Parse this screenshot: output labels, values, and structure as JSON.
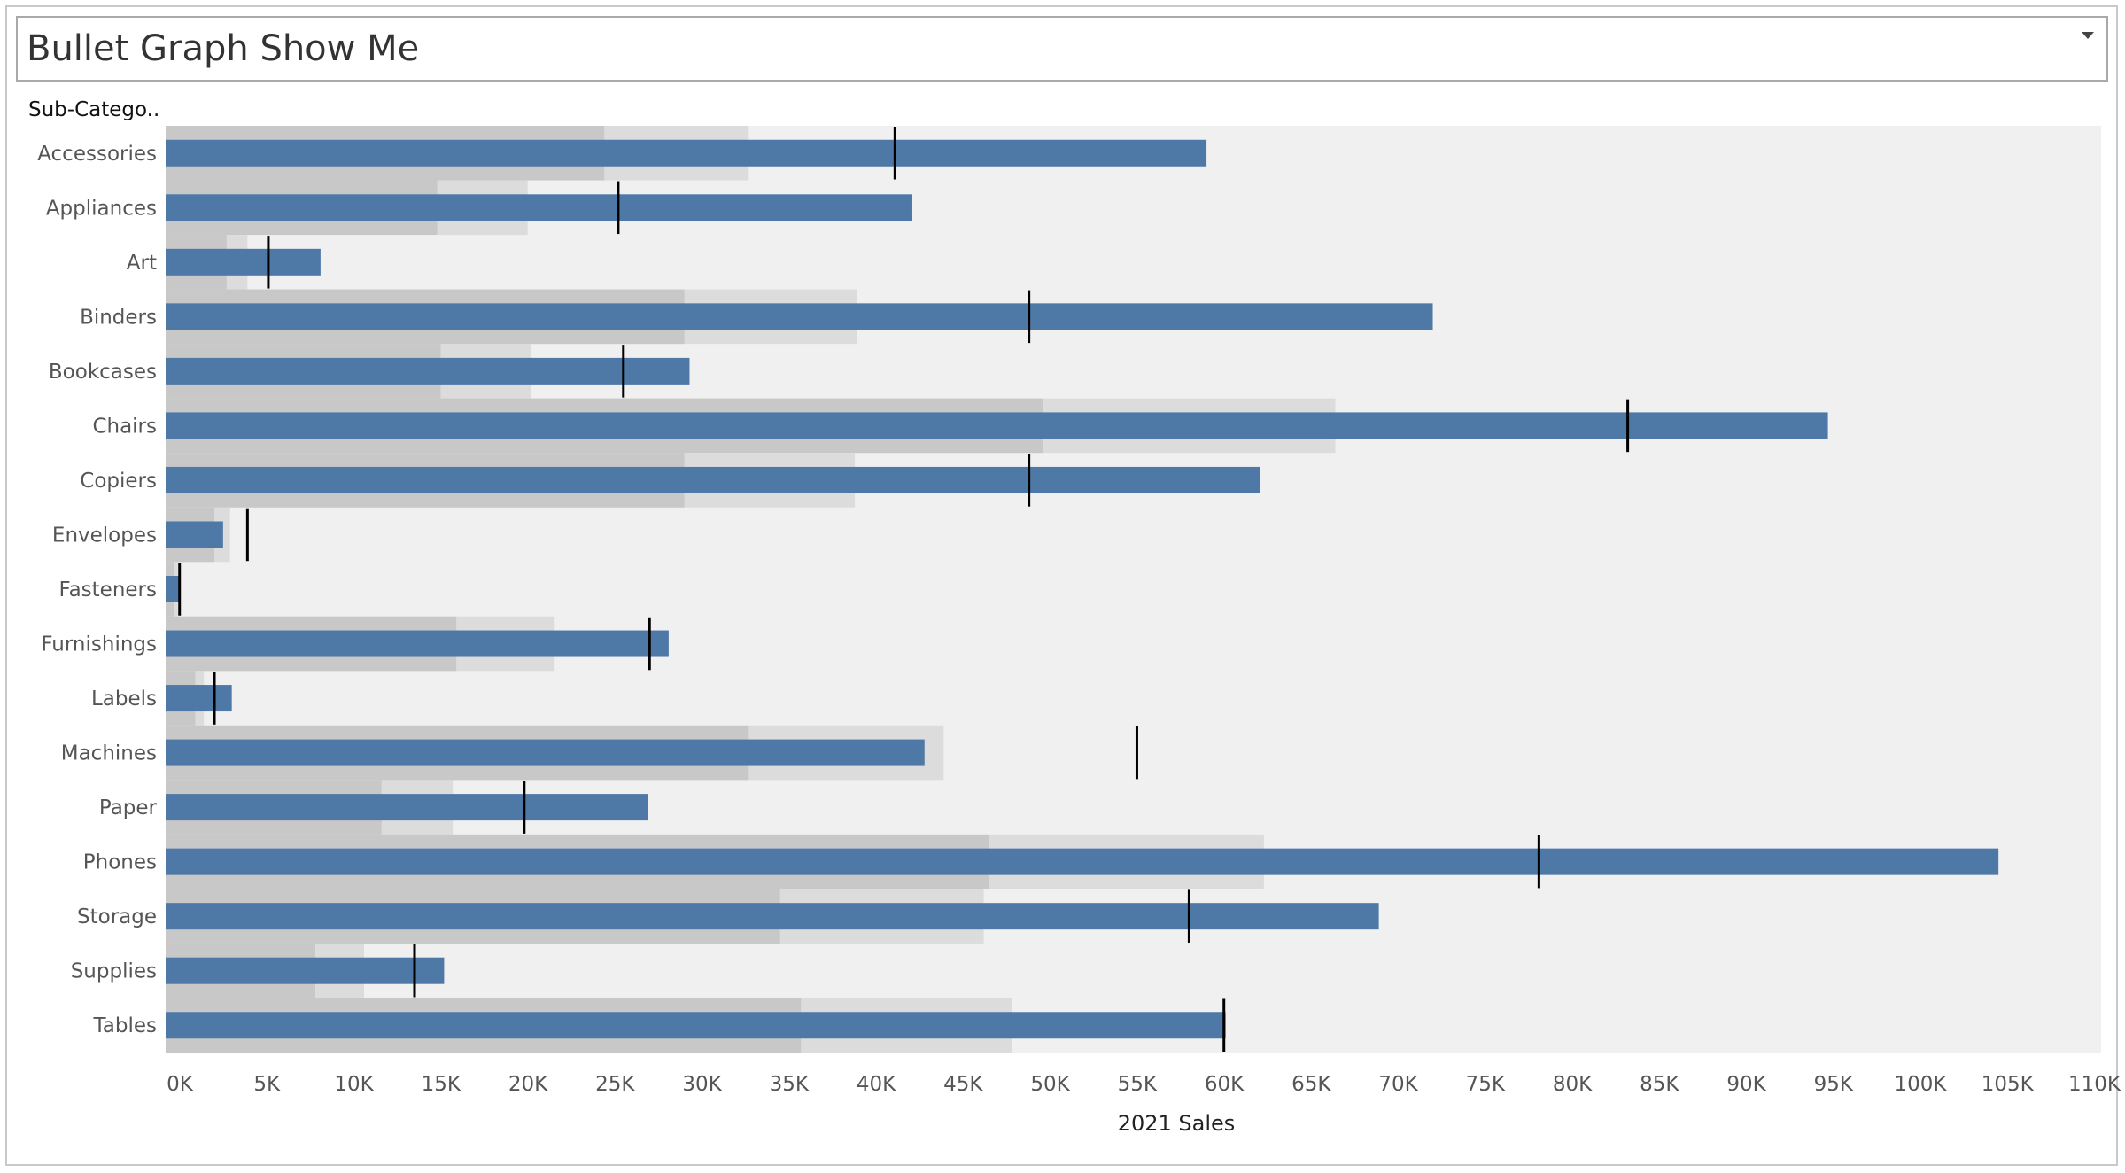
{
  "title": "Bullet Graph Show Me",
  "dropdown_icon": "chevron-down-icon",
  "chart_data": {
    "type": "bullet",
    "row_field_label": "Sub-Catego..",
    "xlabel": "2021 Sales",
    "xlim": [
      0,
      110000
    ],
    "tick_values": [
      0,
      5000,
      10000,
      15000,
      20000,
      25000,
      30000,
      35000,
      40000,
      45000,
      50000,
      55000,
      60000,
      65000,
      70000,
      75000,
      80000,
      85000,
      90000,
      95000,
      100000,
      105000,
      110000
    ],
    "tick_labels": [
      "0K",
      "5K",
      "10K",
      "15K",
      "20K",
      "25K",
      "30K",
      "35K",
      "40K",
      "45K",
      "50K",
      "55K",
      "60K",
      "65K",
      "70K",
      "75K",
      "80K",
      "85K",
      "90K",
      "95K",
      "100K",
      "105K",
      "110K"
    ],
    "colors": {
      "bar": "#4e79a7",
      "band_dark": "#c8c8c8",
      "band_light": "#dcdcdc",
      "pane_background": "#f0f0f0",
      "reference_line": "#000000"
    },
    "rows": [
      {
        "category": "Accessories",
        "value": 59800,
        "target": 41900,
        "band_dark": 25200,
        "band_light": 33500
      },
      {
        "category": "Appliances",
        "value": 42900,
        "target": 26000,
        "band_dark": 15600,
        "band_light": 20800
      },
      {
        "category": "Art",
        "value": 8900,
        "target": 5900,
        "band_dark": 3500,
        "band_light": 4700
      },
      {
        "category": "Binders",
        "value": 72800,
        "target": 49600,
        "band_dark": 29800,
        "band_light": 39700
      },
      {
        "category": "Bookcases",
        "value": 30100,
        "target": 26300,
        "band_dark": 15800,
        "band_light": 21000
      },
      {
        "category": "Chairs",
        "value": 95500,
        "target": 84000,
        "band_dark": 50400,
        "band_light": 67200
      },
      {
        "category": "Copiers",
        "value": 62900,
        "target": 49600,
        "band_dark": 29800,
        "band_light": 39600
      },
      {
        "category": "Envelopes",
        "value": 3300,
        "target": 4700,
        "band_dark": 2800,
        "band_light": 3700
      },
      {
        "category": "Fasteners",
        "value": 800,
        "target": 800,
        "band_dark": 500,
        "band_light": 700
      },
      {
        "category": "Furnishings",
        "value": 28900,
        "target": 27800,
        "band_dark": 16700,
        "band_light": 22300
      },
      {
        "category": "Labels",
        "value": 3800,
        "target": 2800,
        "band_dark": 1700,
        "band_light": 2200
      },
      {
        "category": "Machines",
        "value": 43600,
        "target": 55800,
        "band_dark": 33500,
        "band_light": 44700
      },
      {
        "category": "Paper",
        "value": 27700,
        "target": 20600,
        "band_dark": 12400,
        "band_light": 16500
      },
      {
        "category": "Phones",
        "value": 105300,
        "target": 78900,
        "band_dark": 47300,
        "band_light": 63100
      },
      {
        "category": "Storage",
        "value": 69700,
        "target": 58800,
        "band_dark": 35300,
        "band_light": 47000
      },
      {
        "category": "Supplies",
        "value": 16000,
        "target": 14300,
        "band_dark": 8600,
        "band_light": 11400
      },
      {
        "category": "Tables",
        "value": 60900,
        "target": 60800,
        "band_dark": 36500,
        "band_light": 48600
      }
    ]
  }
}
